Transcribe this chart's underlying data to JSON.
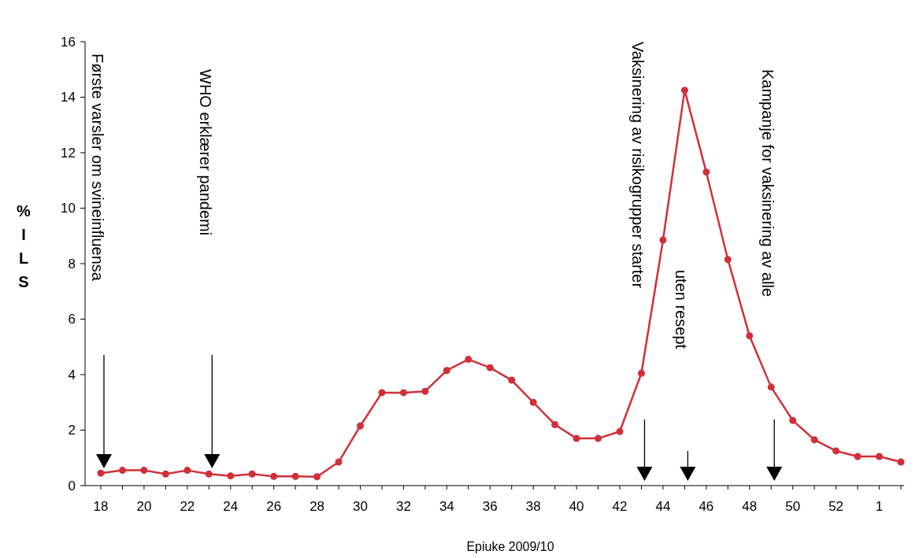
{
  "chart_data": {
    "type": "line",
    "xlabel": "Epiuke 2009/10",
    "ylabel": "%ILS",
    "categories": [
      "18",
      null,
      "20",
      null,
      "22",
      null,
      "24",
      null,
      "26",
      null,
      "28",
      null,
      "30",
      null,
      "32",
      null,
      "34",
      null,
      "36",
      null,
      "38",
      null,
      "40",
      null,
      "42",
      null,
      "44",
      null,
      "46",
      null,
      "48",
      null,
      "50",
      null,
      "52",
      null,
      "1",
      null
    ],
    "series": [
      {
        "color": "#d0303a",
        "values": [
          0.45,
          0.55,
          0.55,
          0.42,
          0.55,
          0.42,
          0.35,
          0.42,
          0.33,
          0.33,
          0.32,
          0.85,
          2.15,
          3.35,
          3.35,
          3.4,
          4.15,
          4.55,
          4.25,
          3.8,
          3.0,
          2.2,
          1.7,
          1.7,
          1.95,
          4.05,
          8.85,
          14.25,
          11.3,
          8.15,
          5.4,
          3.55,
          2.35,
          1.65,
          1.25,
          1.05,
          1.05,
          0.85
        ]
      }
    ],
    "ylim": [
      0,
      16
    ],
    "yticks": [
      0,
      2,
      4,
      6,
      8,
      10,
      12,
      14,
      16
    ],
    "annotations": [
      "Første varsler om svineinfluensa",
      "WHO erklærer pandemi",
      "Vaksinering av risikogrupper starter",
      "uten resept",
      "Kampanje for vaksinering av alle"
    ],
    "grid": false,
    "marker": "circle",
    "line_style": "solid"
  }
}
